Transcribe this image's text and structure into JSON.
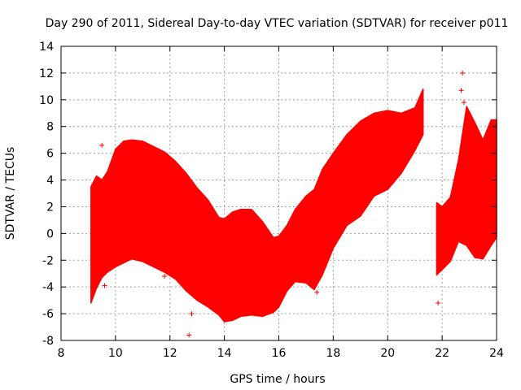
{
  "chart_data": {
    "type": "scatter",
    "title": "Day 290 of 2011, Sidereal Day-to-day VTEC variation (SDTVAR) for receiver p011",
    "xlabel": "GPS time / hours",
    "ylabel": "SDTVAR / TECUs",
    "xlim": [
      8,
      24
    ],
    "ylim": [
      -8,
      14
    ],
    "xticks": [
      8,
      10,
      12,
      14,
      16,
      18,
      20,
      22,
      24
    ],
    "yticks": [
      -8,
      -6,
      -4,
      -2,
      0,
      2,
      4,
      6,
      8,
      10,
      12,
      14
    ],
    "grid": true,
    "marker": "+",
    "series": [
      {
        "color": "#ff0000",
        "envelope": {
          "x": [
            9.1,
            9.3,
            9.5,
            9.7,
            10.0,
            10.3,
            10.6,
            11.0,
            11.4,
            11.8,
            12.2,
            12.6,
            13.0,
            13.4,
            13.8,
            14.0,
            14.3,
            14.6,
            15.0,
            15.4,
            15.8,
            16.0,
            16.3,
            16.6,
            17.0,
            17.3,
            17.6,
            18.0,
            18.5,
            19.0,
            19.5,
            20.0,
            20.5,
            21.0,
            21.3
          ],
          "upper": [
            3.5,
            4.3,
            4.0,
            4.6,
            6.3,
            6.9,
            7.0,
            6.9,
            6.5,
            6.1,
            5.4,
            4.5,
            3.4,
            2.5,
            1.2,
            1.1,
            1.6,
            1.8,
            1.8,
            0.9,
            -0.3,
            -0.2,
            0.6,
            1.8,
            2.8,
            3.3,
            4.8,
            6.0,
            7.4,
            8.4,
            9.0,
            9.2,
            9.0,
            9.4,
            10.8
          ],
          "lower": [
            -5.2,
            -4.1,
            -3.3,
            -2.9,
            -2.5,
            -2.2,
            -1.9,
            -2.1,
            -2.5,
            -2.9,
            -3.4,
            -4.3,
            -5.0,
            -5.5,
            -6.1,
            -6.6,
            -6.5,
            -6.2,
            -6.1,
            -6.2,
            -5.9,
            -5.5,
            -4.3,
            -3.6,
            -3.7,
            -4.2,
            -3.1,
            -1.1,
            0.6,
            1.3,
            2.8,
            3.3,
            4.5,
            6.2,
            7.4
          ]
        },
        "envelope2": {
          "x": [
            21.8,
            22.0,
            22.3,
            22.6,
            22.9,
            23.2,
            23.5,
            23.8,
            24.0
          ],
          "upper": [
            2.3,
            2.0,
            2.7,
            5.5,
            9.5,
            8.3,
            7.0,
            8.5,
            8.5
          ],
          "lower": [
            -3.1,
            -2.7,
            -2.1,
            -0.6,
            -0.9,
            -1.8,
            -1.9,
            -0.9,
            -0.3
          ]
        },
        "outliers": [
          [
            9.5,
            6.6
          ],
          [
            9.6,
            -3.9
          ],
          [
            11.8,
            -3.2
          ],
          [
            12.7,
            -7.6
          ],
          [
            12.8,
            -6.0
          ],
          [
            17.4,
            -4.4
          ],
          [
            21.85,
            -5.2
          ],
          [
            22.75,
            12.0
          ],
          [
            22.7,
            10.7
          ],
          [
            22.8,
            9.8
          ]
        ]
      }
    ]
  }
}
